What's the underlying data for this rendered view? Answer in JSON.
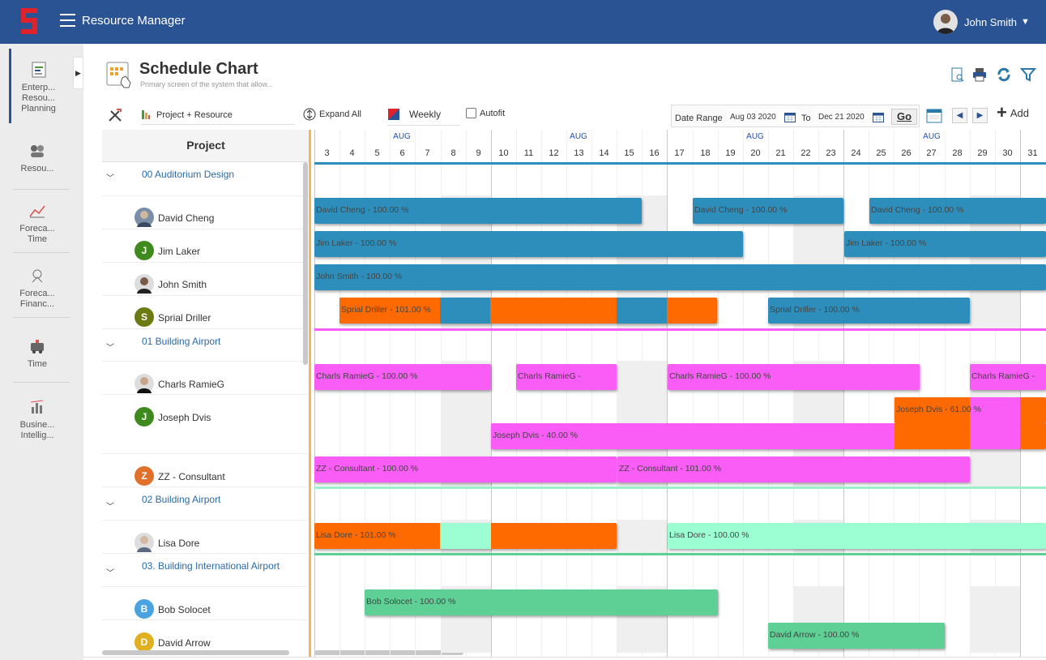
{
  "app": {
    "title": "Resource Manager",
    "user_name": "John Smith"
  },
  "sidebar": {
    "items": [
      {
        "label": "Enterp... Resou... Planning",
        "icon": "enterprise-planning-icon"
      },
      {
        "label": "Resou...",
        "icon": "resources-icon"
      },
      {
        "label": "Foreca... Time",
        "icon": "forecast-time-icon"
      },
      {
        "label": "Foreca... Financ...",
        "icon": "forecast-finance-icon"
      },
      {
        "label": "Time",
        "icon": "time-icon"
      },
      {
        "label": "Busine... Intellig...",
        "icon": "business-intelligence-icon"
      }
    ]
  },
  "page": {
    "title": "Schedule Chart",
    "subtitle": "Primary screen of the system that allow..."
  },
  "toolbar": {
    "view_mode": "Project + Resource",
    "expand_all": "Expand All",
    "scale": "Weekly",
    "autofit": "Autofit",
    "date_range_label": "Date Range",
    "from_date": "Aug 03 2020",
    "to_label": "To",
    "to_date": "Dec 21 2020",
    "go": "Go",
    "add": "Add"
  },
  "left_panel": {
    "header": "Project"
  },
  "timeline": {
    "month_label": "AUG",
    "days": [
      "3",
      "4",
      "5",
      "6",
      "7",
      "8",
      "9",
      "10",
      "11",
      "12",
      "13",
      "14",
      "15",
      "16",
      "17",
      "18",
      "19",
      "20",
      "21",
      "22",
      "23",
      "24",
      "25",
      "26",
      "27",
      "28",
      "29",
      "30",
      "31"
    ]
  },
  "colors": {
    "blue": "#2e8ebb",
    "pink": "#fa5cf6",
    "orange": "#ff6a00",
    "mint": "#9cffd4",
    "green": "#5ecf95",
    "topbar": "#2a5393"
  },
  "projects": [
    {
      "name": "00 Auditorium Design",
      "resources": [
        {
          "name": "David Cheng",
          "initial": "",
          "bars": [
            "David Cheng - 100.00 %",
            "David Cheng - 100.00 %",
            "David Cheng - 100.00 %"
          ]
        },
        {
          "name": "Jim Laker",
          "initial": "J",
          "bars": [
            "Jim Laker - 100.00 %",
            "Jim Laker - 100.00 %"
          ]
        },
        {
          "name": "John Smith",
          "initial": "",
          "bars": [
            "John Smith - 100.00 %"
          ]
        },
        {
          "name": "Sprial Driller",
          "initial": "S",
          "bars": [
            "Sprial Driller - 101.00 %",
            "Sprial Driller - 100.00 %"
          ]
        }
      ]
    },
    {
      "name": "01 Building Airport",
      "resources": [
        {
          "name": "Charls RamieG",
          "initial": "",
          "bars": [
            "Charls RamieG - 100.00 %",
            "Charls RamieG -",
            "Charls RamieG - 100.00 %",
            "Charls RamieG -"
          ]
        },
        {
          "name": "Joseph Dvis",
          "initial": "J",
          "bars": [
            "Joseph Dvis - 61.00 %",
            "Joseph Dvis - 40.00 %"
          ]
        },
        {
          "name": "ZZ - Consultant",
          "initial": "Z",
          "bars": [
            "ZZ - Consultant - 100.00 %",
            "ZZ - Consultant - 101.00 %"
          ]
        }
      ]
    },
    {
      "name": "02 Building Airport",
      "resources": [
        {
          "name": "Lisa Dore",
          "initial": "",
          "bars": [
            "Lisa Dore - 101.00 %",
            "Lisa Dore - 100.00 %"
          ]
        }
      ]
    },
    {
      "name": "03. Building International Airport",
      "resources": [
        {
          "name": "Bob Solocet",
          "initial": "B",
          "bars": [
            "Bob Solocet - 100.00 %"
          ]
        },
        {
          "name": "David Arrow",
          "initial": "D",
          "bars": [
            "David Arrow - 100.00 %"
          ]
        }
      ]
    }
  ]
}
